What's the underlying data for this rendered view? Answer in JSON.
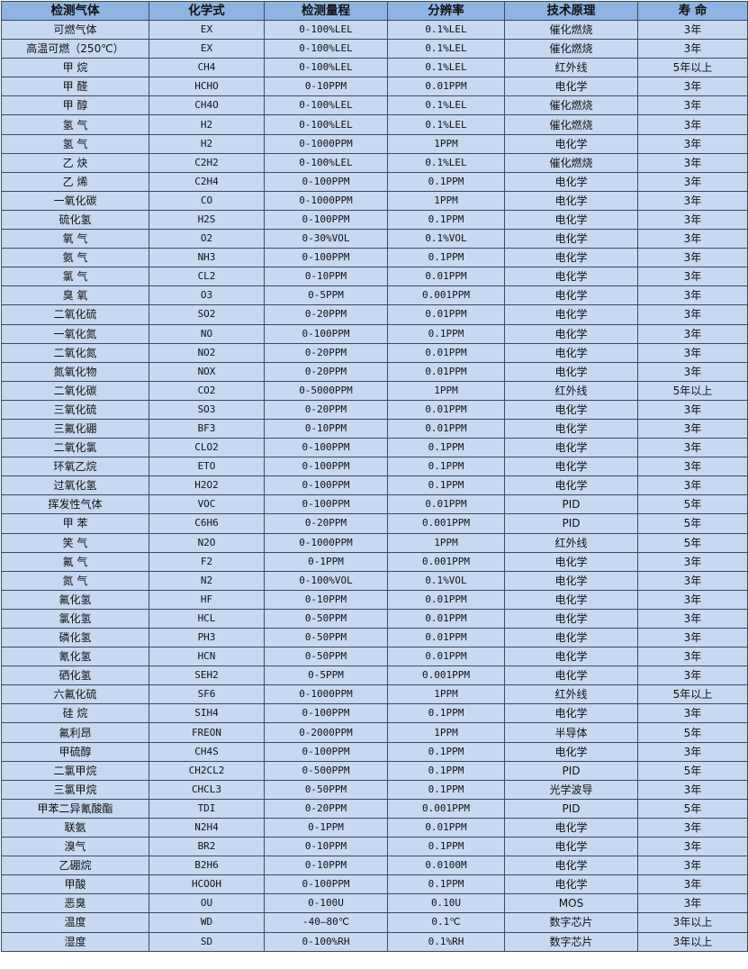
{
  "headers": [
    "检测气体",
    "化学式",
    "检测量程",
    "分辨率",
    "技术原理",
    "寿 命"
  ],
  "rows": [
    [
      "可燃气体",
      "EX",
      "0-100%LEL",
      "0.1%LEL",
      "催化燃烧",
      "3年"
    ],
    [
      "高温可燃（250℃）",
      "EX",
      "0-100%LEL",
      "0.1%LEL",
      "催化燃烧",
      "3年"
    ],
    [
      "甲 烷",
      "CH4",
      "0-100%LEL",
      "0.1%LEL",
      "红外线",
      "5年以上"
    ],
    [
      "甲 醛",
      "HCHO",
      "0-10PPM",
      "0.01PPM",
      "电化学",
      "3年"
    ],
    [
      "甲 醇",
      "CH4O",
      "0-100%LEL",
      "0.1%LEL",
      "催化燃烧",
      "3年"
    ],
    [
      "氢 气",
      "H2",
      "0-100%LEL",
      "0.1%LEL",
      "催化燃烧",
      "3年"
    ],
    [
      "氢 气",
      "H2",
      "0-1000PPM",
      "1PPM",
      "电化学",
      "3年"
    ],
    [
      "乙 炔",
      "C2H2",
      "0-100%LEL",
      "0.1%LEL",
      "催化燃烧",
      "3年"
    ],
    [
      "乙 烯",
      "C2H4",
      "0-100PPM",
      "0.1PPM",
      "电化学",
      "3年"
    ],
    [
      "一氧化碳",
      "CO",
      "0-1000PPM",
      "1PPM",
      "电化学",
      "3年"
    ],
    [
      "硫化氢",
      "H2S",
      "0-100PPM",
      "0.1PPM",
      "电化学",
      "3年"
    ],
    [
      "氧 气",
      "O2",
      "0-30%VOL",
      "0.1%VOL",
      "电化学",
      "3年"
    ],
    [
      "氨 气",
      "NH3",
      "0-100PPM",
      "0.1PPM",
      "电化学",
      "3年"
    ],
    [
      "氯 气",
      "CL2",
      "0-10PPM",
      "0.01PPM",
      "电化学",
      "3年"
    ],
    [
      "臭 氧",
      "O3",
      "0-5PPM",
      "0.001PPM",
      "电化学",
      "3年"
    ],
    [
      "二氧化硫",
      "SO2",
      "0-20PPM",
      "0.01PPM",
      "电化学",
      "3年"
    ],
    [
      "一氧化氮",
      "NO",
      "0-100PPM",
      "0.1PPM",
      "电化学",
      "3年"
    ],
    [
      "二氧化氮",
      "NO2",
      "0-20PPM",
      "0.01PPM",
      "电化学",
      "3年"
    ],
    [
      "氮氧化物",
      "NOX",
      "0-20PPM",
      "0.01PPM",
      "电化学",
      "3年"
    ],
    [
      "二氧化碳",
      "CO2",
      "0-5000PPM",
      "1PPM",
      "红外线",
      "5年以上"
    ],
    [
      "三氧化硫",
      "SO3",
      "0-20PPM",
      "0.01PPM",
      "电化学",
      "3年"
    ],
    [
      "三氟化硼",
      "BF3",
      "0-10PPM",
      "0.01PPM",
      "电化学",
      "3年"
    ],
    [
      "二氧化氯",
      "CLO2",
      "0-100PPM",
      "0.1PPM",
      "电化学",
      "3年"
    ],
    [
      "环氧乙烷",
      "ETO",
      "0-100PPM",
      "0.1PPM",
      "电化学",
      "3年"
    ],
    [
      "过氧化氢",
      "H2O2",
      "0-100PPM",
      "0.1PPM",
      "电化学",
      "3年"
    ],
    [
      "挥发性气体",
      "VOC",
      "0-100PPM",
      "0.01PPM",
      "PID",
      "5年"
    ],
    [
      "甲 苯",
      "C6H6",
      "0-20PPM",
      "0.001PPM",
      "PID",
      "5年"
    ],
    [
      "笑 气",
      "N2O",
      "0-1000PPM",
      "1PPM",
      "红外线",
      "5年"
    ],
    [
      "氟 气",
      "F2",
      "0-1PPM",
      "0.001PPM",
      "电化学",
      "3年"
    ],
    [
      "氮 气",
      "N2",
      "0-100%VOL",
      "0.1%VOL",
      "电化学",
      "3年"
    ],
    [
      "氟化氢",
      "HF",
      "0-10PPM",
      "0.01PPM",
      "电化学",
      "3年"
    ],
    [
      "氯化氢",
      "HCL",
      "0-50PPM",
      "0.01PPM",
      "电化学",
      "3年"
    ],
    [
      "磷化氢",
      "PH3",
      "0-50PPM",
      "0.01PPM",
      "电化学",
      "3年"
    ],
    [
      "氰化氢",
      "HCN",
      "0-50PPM",
      "0.01PPM",
      "电化学",
      "3年"
    ],
    [
      "硒化氢",
      "SEH2",
      "0-5PPM",
      "0.001PPM",
      "电化学",
      "3年"
    ],
    [
      "六氟化硫",
      "SF6",
      "0-1000PPM",
      "1PPM",
      "红外线",
      "5年以上"
    ],
    [
      "硅 烷",
      "SIH4",
      "0-100PPM",
      "0.1PPM",
      "电化学",
      "3年"
    ],
    [
      "氟利昂",
      "FREON",
      "0-2000PPM",
      "1PPM",
      "半导体",
      "5年"
    ],
    [
      "甲硫醇",
      "CH4S",
      "0-100PPM",
      "0.1PPM",
      "电化学",
      "3年"
    ],
    [
      "二氯甲烷",
      "CH2CL2",
      "0-500PPM",
      "0.1PPM",
      "PID",
      "5年"
    ],
    [
      "三氯甲烷",
      "CHCL3",
      "0-50PPM",
      "0.1PPM",
      "光学波导",
      "3年"
    ],
    [
      "甲苯二异氰酸酯",
      "TDI",
      "0-20PPM",
      "0.001PPM",
      "PID",
      "5年"
    ],
    [
      "联氨",
      "N2H4",
      "0-1PPM",
      "0.01PPM",
      "电化学",
      "3年"
    ],
    [
      "溴气",
      "BR2",
      "0-10PPM",
      "0.1PPM",
      "电化学",
      "3年"
    ],
    [
      "乙硼烷",
      "B2H6",
      "0-10PPM",
      "0.0100M",
      "电化学",
      "3年"
    ],
    [
      "甲酸",
      "HCOOH",
      "0-100PPM",
      "0.1PPM",
      "电化学",
      "3年"
    ],
    [
      "恶臭",
      "OU",
      "0-100U",
      "0.10U",
      "MOS",
      "3年"
    ],
    [
      "温度",
      "WD",
      "-40—80℃",
      "0.1℃",
      "数字芯片",
      "3年以上"
    ],
    [
      "湿度",
      "SD",
      "0-100%RH",
      "0.1%RH",
      "数字芯片",
      "3年以上"
    ]
  ],
  "colors": {
    "header_bg": "#8db4e2",
    "cell_bg": "#c6d9f1",
    "border": "#3b4a5e"
  }
}
